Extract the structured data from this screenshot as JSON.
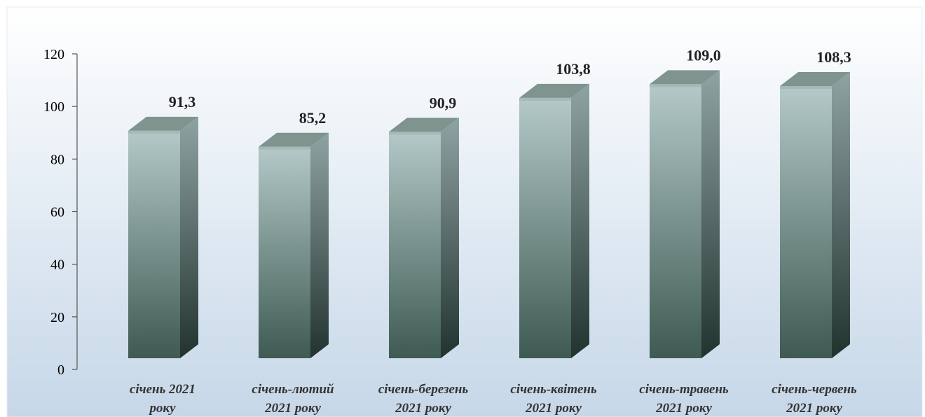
{
  "chart_data": {
    "type": "bar",
    "categories": [
      [
        "січень 2021",
        "року"
      ],
      [
        "січень-лютий",
        "2021 року"
      ],
      [
        "січень-березень",
        "2021 року"
      ],
      [
        "січень-квітень",
        "2021 року"
      ],
      [
        "січень-травень",
        "2021 року"
      ],
      [
        "січень-червень",
        "2021 року"
      ]
    ],
    "values": [
      91.3,
      85.2,
      90.9,
      103.8,
      109.0,
      108.3
    ],
    "value_labels": [
      "91,3",
      "85,2",
      "90,9",
      "103,8",
      "109,0",
      "108,3"
    ],
    "y_ticks": [
      "0",
      "20",
      "40",
      "60",
      "80",
      "100",
      "120"
    ],
    "ylim": [
      0,
      120
    ],
    "grid": false,
    "legend": "none",
    "bar_style": "3d-column",
    "colors": {
      "background_top": "#ffffff",
      "background_bottom": "#c6d7e8",
      "bar_front_top": "#b4c9c8",
      "bar_front_bottom": "#3e5a52",
      "bar_side_top": "#8fa3a3",
      "bar_side_bottom": "#22332e",
      "bar_top": "#7f948f"
    }
  }
}
